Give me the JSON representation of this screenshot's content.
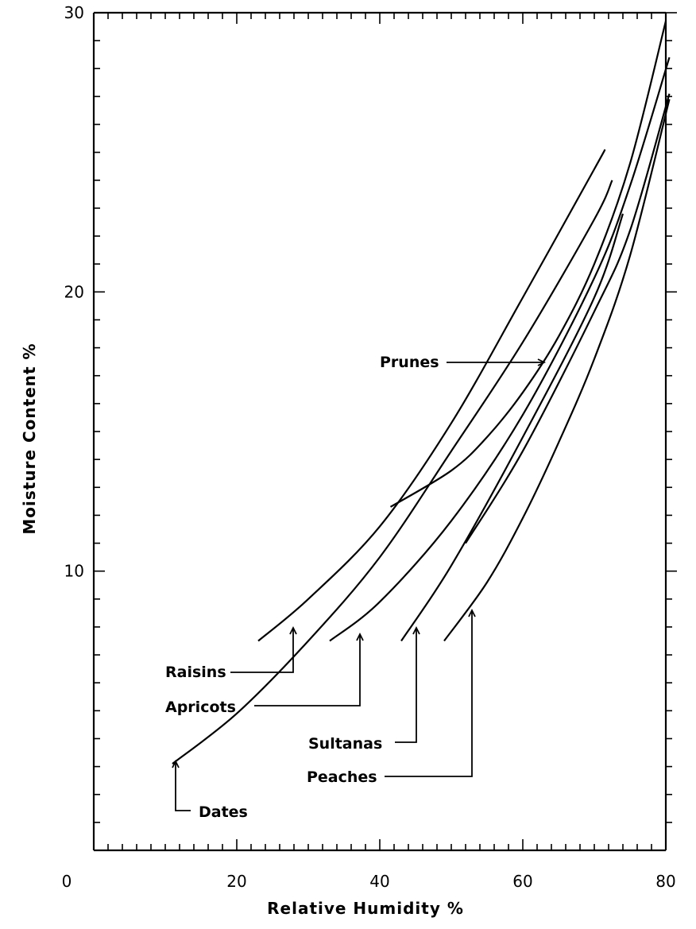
{
  "chart_data": {
    "type": "line",
    "title": "",
    "xlabel": "Relative Humidity %",
    "ylabel": "Moisture Content %",
    "xlim": [
      0,
      80
    ],
    "ylim": [
      0,
      30
    ],
    "x_ticks": [
      0,
      20,
      40,
      60,
      80
    ],
    "y_ticks": [
      10,
      20,
      30
    ],
    "grid": false,
    "series": [
      {
        "name": "Raisins",
        "x": [
          23,
          30,
          40,
          50,
          60,
          70,
          71.5
        ],
        "y": [
          7.5,
          9.0,
          11.6,
          15.3,
          19.8,
          24.4,
          25.1
        ]
      },
      {
        "name": "Apricots",
        "x": [
          11,
          20,
          30,
          40,
          50,
          60,
          70,
          72.5
        ],
        "y": [
          3.1,
          4.9,
          7.5,
          10.5,
          14.3,
          18.2,
          22.6,
          24.0
        ]
      },
      {
        "name": "Prunes",
        "x": [
          41.5,
          50,
          55,
          60,
          65,
          70,
          75,
          80
        ],
        "y": [
          12.3,
          13.6,
          14.8,
          16.4,
          18.4,
          21.0,
          24.6,
          29.7
        ]
      },
      {
        "name": "Sultanas",
        "x": [
          33,
          40,
          50,
          60,
          70,
          75,
          80.5
        ],
        "y": [
          7.5,
          8.9,
          11.8,
          15.6,
          20.5,
          23.8,
          28.4
        ]
      },
      {
        "name": "Peaches",
        "x": [
          43,
          50,
          60,
          70,
          74
        ],
        "y": [
          7.5,
          10.2,
          14.8,
          19.8,
          22.8
        ]
      },
      {
        "name": "Dates",
        "x": [
          49,
          55,
          60,
          65,
          70,
          75,
          80.5
        ],
        "y": [
          7.5,
          9.6,
          11.9,
          14.6,
          17.6,
          21.3,
          26.9
        ]
      }
    ],
    "extra_curve": {
      "x": [
        52,
        60,
        70,
        75,
        80.5
      ],
      "y": [
        11.0,
        14.3,
        19.3,
        22.2,
        27.1
      ]
    }
  }
}
